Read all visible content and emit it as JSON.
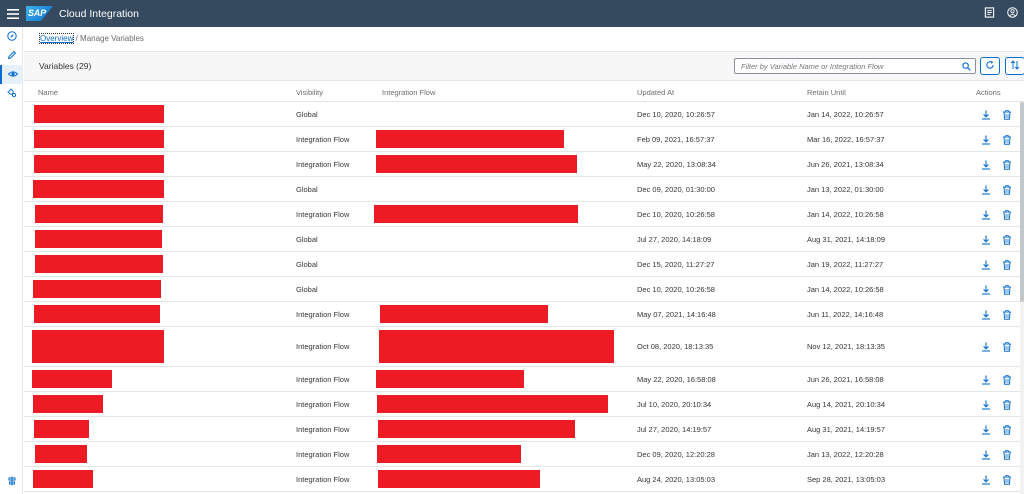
{
  "shell": {
    "logo_text": "SAP",
    "title": "Cloud Integration",
    "icons": [
      "hamburger-icon",
      "notes-icon",
      "user-icon"
    ]
  },
  "sidenav": {
    "items": [
      "discover-icon",
      "design-icon",
      "monitor-icon",
      "settings-icon"
    ],
    "bottom": "pin-icon"
  },
  "breadcrumb": {
    "root": "Overview",
    "current": "/ Manage Variables"
  },
  "toolbar": {
    "title": "Variables (29)",
    "search_placeholder": "Filter by Variable Name or Integration Flow",
    "buttons": [
      "refresh-icon",
      "sort-icon"
    ]
  },
  "columns": {
    "name": "Name",
    "visibility": "Visibility",
    "flow": "Integration Flow",
    "updated": "Updated At",
    "retain": "Retain Until",
    "actions": "Actions"
  },
  "rows": [
    {
      "visibility": "Global",
      "updated": "Dec 10, 2020, 10:26:57",
      "retain": "Jan 14, 2022, 10:26:57",
      "name_redacted": true,
      "flow_redacted": false
    },
    {
      "visibility": "Integration Flow",
      "updated": "Feb 09, 2021, 16:57:37",
      "retain": "Mar 16, 2022, 16:57:37",
      "name_redacted": true,
      "flow_redacted": true
    },
    {
      "visibility": "Integration Flow",
      "updated": "May 22, 2020, 13:08:34",
      "retain": "Jun 26, 2021, 13:08:34",
      "name_redacted": true,
      "flow_redacted": true
    },
    {
      "visibility": "Global",
      "updated": "Dec 09, 2020, 01:30:00",
      "retain": "Jan 13, 2022, 01:30:00",
      "name_redacted": true,
      "flow_redacted": false
    },
    {
      "visibility": "Integration Flow",
      "updated": "Dec 10, 2020, 10:26:58",
      "retain": "Jan 14, 2022, 10:26:58",
      "name_redacted": true,
      "flow_redacted": true
    },
    {
      "visibility": "Global",
      "updated": "Jul 27, 2020, 14:18:09",
      "retain": "Aug 31, 2021, 14:18:09",
      "name_redacted": true,
      "flow_redacted": false
    },
    {
      "visibility": "Global",
      "updated": "Dec 15, 2020, 11:27:27",
      "retain": "Jan 19, 2022, 11:27:27",
      "name_redacted": true,
      "flow_redacted": false
    },
    {
      "visibility": "Global",
      "updated": "Dec 10, 2020, 10:26:58",
      "retain": "Jan 14, 2022, 10:26:58",
      "name_redacted": true,
      "flow_redacted": false
    },
    {
      "visibility": "Integration Flow",
      "updated": "May 07, 2021, 14:16:48",
      "retain": "Jun 11, 2022, 14:16:48",
      "name_redacted": true,
      "flow_redacted": true
    },
    {
      "visibility": "Integration Flow",
      "updated": "Oct 08, 2020, 18:13:35",
      "retain": "Nov 12, 2021, 18:13:35",
      "name_redacted": true,
      "flow_redacted": true
    },
    {
      "visibility": "Integration Flow",
      "updated": "May 22, 2020, 16:58:08",
      "retain": "Jun 26, 2021, 16:58:08",
      "name_redacted": true,
      "flow_redacted": true
    },
    {
      "visibility": "Integration Flow",
      "updated": "Jul 10, 2020, 20:10:34",
      "retain": "Aug 14, 2021, 20:10:34",
      "name_redacted": true,
      "flow_redacted": true
    },
    {
      "visibility": "Integration Flow",
      "updated": "Jul 27, 2020, 14:19:57",
      "retain": "Aug 31, 2021, 14:19:57",
      "name_redacted": true,
      "flow_redacted": true
    },
    {
      "visibility": "Integration Flow",
      "updated": "Dec 09, 2020, 12:20:28",
      "retain": "Jan 13, 2022, 12:20:28",
      "name_redacted": true,
      "flow_redacted": true
    },
    {
      "visibility": "Integration Flow",
      "updated": "Aug 24, 2020, 13:05:03",
      "retain": "Sep 28, 2021, 13:05:03",
      "name_redacted": true,
      "flow_redacted": true
    }
  ],
  "row_actions": [
    "download-icon",
    "delete-icon"
  ],
  "colors": {
    "shell": "#354a5f",
    "accent": "#0a6ed1",
    "redaction": "#ed1c24"
  }
}
